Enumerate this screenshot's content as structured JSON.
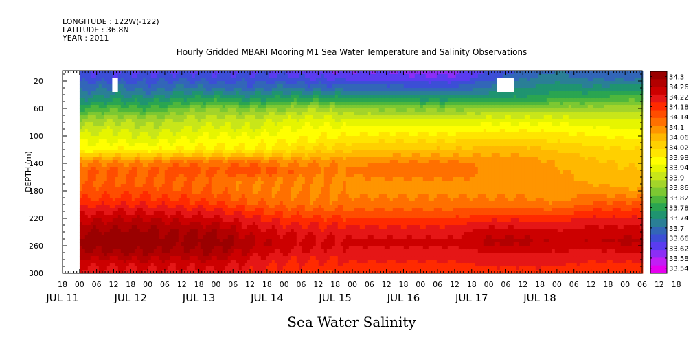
{
  "header": {
    "longitude": "LONGITUDE : 122W(-122)",
    "latitude": "LATITUDE : 36.8N",
    "year": "YEAR : 2011"
  },
  "chart_data": {
    "type": "heatmap",
    "title": "Hourly Gridded MBARI Mooring M1 Sea Water Temperature and Salinity Observations",
    "ylabel": "DEPTH (m)",
    "xlabel": "Sea Water Salinity",
    "y_range": [
      300,
      5
    ],
    "y_reversed": true,
    "y_ticks": [
      "20",
      "60",
      "100",
      "140",
      "180",
      "220",
      "260",
      "300"
    ],
    "x_range_hours": [
      0,
      204
    ],
    "x_hour_ticks": [
      "18",
      "00",
      "06",
      "12",
      "18",
      "00",
      "06",
      "12",
      "18",
      "00",
      "06",
      "12",
      "18",
      "00",
      "06",
      "12",
      "18",
      "00",
      "06",
      "12",
      "18",
      "00",
      "06",
      "12",
      "18",
      "00",
      "06",
      "12",
      "18",
      "00",
      "06",
      "12",
      "18",
      "00",
      "06",
      "12",
      "18"
    ],
    "x_day_labels": [
      "JUL 11",
      "JUL 12",
      "JUL 13",
      "JUL 14",
      "JUL 15",
      "JUL 16",
      "JUL 17",
      "JUL 18"
    ],
    "data_start": "JUL 12 00",
    "no_data_gaps": [
      {
        "from_hour": 0,
        "to_hour": 6,
        "depth_from": 5,
        "depth_to": 300
      },
      {
        "from_hour": 17.5,
        "to_hour": 19.5,
        "depth_from": 15,
        "depth_to": 36
      },
      {
        "from_hour": 153,
        "to_hour": 159,
        "depth_from": 15,
        "depth_to": 36
      }
    ],
    "colorbar": {
      "labels": [
        "34.3",
        "34.26",
        "34.22",
        "34.18",
        "34.14",
        "34.1",
        "34.06",
        "34.02",
        "33.98",
        "33.94",
        "33.9",
        "33.86",
        "33.82",
        "33.78",
        "33.74",
        "33.7",
        "33.66",
        "33.62",
        "33.58",
        "33.54"
      ],
      "colors": [
        "#9a0000",
        "#b20000",
        "#cc0000",
        "#e51616",
        "#ff2a00",
        "#ff4d00",
        "#ff7000",
        "#ff9500",
        "#ffb800",
        "#ffd000",
        "#ffe500",
        "#ffff00",
        "#e6f500",
        "#c8e619",
        "#a3d42a",
        "#7cc832",
        "#4fb73c",
        "#2aa551",
        "#1f9470",
        "#2a7f96",
        "#3266b8",
        "#3c4ed6",
        "#5a3cf0",
        "#8c2ef5",
        "#c21ef5",
        "#e600f0"
      ]
    },
    "depths": [
      10,
      20,
      30,
      45,
      60,
      75,
      90,
      105,
      120,
      135,
      150,
      165,
      180,
      195,
      210,
      225,
      240,
      255,
      270,
      285,
      300
    ],
    "profiles": [
      {
        "hour": 6,
        "values": [
          33.66,
          33.68,
          33.7,
          33.74,
          33.8,
          33.86,
          33.9,
          33.94,
          33.96,
          34.08,
          34.12,
          34.12,
          34.13,
          34.16,
          34.2,
          34.24,
          34.27,
          34.29,
          34.26,
          34.22,
          34.2
        ]
      },
      {
        "hour": 18,
        "values": [
          33.66,
          33.68,
          33.72,
          33.76,
          33.82,
          33.88,
          33.92,
          33.94,
          33.98,
          34.08,
          34.13,
          34.12,
          34.14,
          34.17,
          34.21,
          34.25,
          34.28,
          34.3,
          34.27,
          34.22,
          34.2
        ]
      },
      {
        "hour": 30,
        "values": [
          33.66,
          33.68,
          33.7,
          33.75,
          33.8,
          33.87,
          33.9,
          33.93,
          33.97,
          34.08,
          34.12,
          34.12,
          34.14,
          34.17,
          34.21,
          34.25,
          34.28,
          34.29,
          34.27,
          34.23,
          34.2
        ]
      },
      {
        "hour": 42,
        "values": [
          33.66,
          33.69,
          33.72,
          33.77,
          33.84,
          33.89,
          33.92,
          33.95,
          33.98,
          34.1,
          34.15,
          34.12,
          34.13,
          34.16,
          34.2,
          34.24,
          34.27,
          34.28,
          34.26,
          34.22,
          34.2
        ]
      },
      {
        "hour": 54,
        "values": [
          33.66,
          33.68,
          33.71,
          33.78,
          33.86,
          33.9,
          33.93,
          33.96,
          33.99,
          34.09,
          34.13,
          34.11,
          34.12,
          34.15,
          34.19,
          34.23,
          34.27,
          34.29,
          34.27,
          34.23,
          34.2
        ]
      },
      {
        "hour": 66,
        "values": [
          33.66,
          33.68,
          33.7,
          33.76,
          33.84,
          33.9,
          33.92,
          33.96,
          33.98,
          34.1,
          34.15,
          34.1,
          34.1,
          34.12,
          34.16,
          34.2,
          34.23,
          34.25,
          34.23,
          34.2,
          34.19
        ]
      },
      {
        "hour": 78,
        "values": [
          33.65,
          33.68,
          33.72,
          33.78,
          33.86,
          33.92,
          33.95,
          33.97,
          34.0,
          34.08,
          34.12,
          34.1,
          34.1,
          34.11,
          34.14,
          34.18,
          34.21,
          34.23,
          34.21,
          34.18,
          34.17
        ]
      },
      {
        "hour": 90,
        "values": [
          33.64,
          33.67,
          33.7,
          33.78,
          33.88,
          33.93,
          33.96,
          33.98,
          34.02,
          34.08,
          34.11,
          34.09,
          34.09,
          34.1,
          34.13,
          34.17,
          34.2,
          34.22,
          34.2,
          34.18,
          34.16
        ]
      },
      {
        "hour": 102,
        "values": [
          33.63,
          33.66,
          33.7,
          33.77,
          33.86,
          33.92,
          33.96,
          33.99,
          34.03,
          34.08,
          34.1,
          34.09,
          34.09,
          34.1,
          34.13,
          34.17,
          34.2,
          34.22,
          34.2,
          34.18,
          34.16
        ]
      },
      {
        "hour": 114,
        "values": [
          33.63,
          33.66,
          33.7,
          33.77,
          33.85,
          33.92,
          33.96,
          34.0,
          34.04,
          34.09,
          34.12,
          34.09,
          34.09,
          34.1,
          34.13,
          34.17,
          34.2,
          34.22,
          34.2,
          34.18,
          34.16
        ]
      },
      {
        "hour": 126,
        "values": [
          33.62,
          33.65,
          33.69,
          33.76,
          33.85,
          33.92,
          33.96,
          34.0,
          34.04,
          34.09,
          34.12,
          34.09,
          34.09,
          34.1,
          34.13,
          34.17,
          34.2,
          34.22,
          34.2,
          34.18,
          34.16
        ]
      },
      {
        "hour": 138,
        "values": [
          33.62,
          33.65,
          33.69,
          33.76,
          33.85,
          33.92,
          33.96,
          34.0,
          34.04,
          34.09,
          34.12,
          34.09,
          34.09,
          34.1,
          34.13,
          34.17,
          34.2,
          34.22,
          34.2,
          34.18,
          34.16
        ]
      },
      {
        "hour": 150,
        "values": [
          33.66,
          33.69,
          33.72,
          33.77,
          33.86,
          33.93,
          33.97,
          34.01,
          34.05,
          34.08,
          34.09,
          34.09,
          34.09,
          34.1,
          34.14,
          34.19,
          34.23,
          34.25,
          34.21,
          34.19,
          34.17
        ]
      },
      {
        "hour": 162,
        "values": [
          33.7,
          33.72,
          33.74,
          33.78,
          33.86,
          33.93,
          33.97,
          34.01,
          34.05,
          34.08,
          34.08,
          34.09,
          34.09,
          34.1,
          34.14,
          34.19,
          34.23,
          34.25,
          34.21,
          34.19,
          34.17
        ]
      },
      {
        "hour": 174,
        "values": [
          33.72,
          33.74,
          33.76,
          33.8,
          33.87,
          33.93,
          33.97,
          34.0,
          34.03,
          34.06,
          34.07,
          34.08,
          34.08,
          34.09,
          34.13,
          34.18,
          34.22,
          34.24,
          34.21,
          34.19,
          34.17
        ]
      },
      {
        "hour": 186,
        "values": [
          33.7,
          33.72,
          33.75,
          33.8,
          33.87,
          33.92,
          33.96,
          33.99,
          34.02,
          34.04,
          34.05,
          34.06,
          34.08,
          34.12,
          34.16,
          34.2,
          34.23,
          34.24,
          34.2,
          34.18,
          34.16
        ]
      },
      {
        "hour": 198,
        "values": [
          33.7,
          33.72,
          33.76,
          33.82,
          33.88,
          33.92,
          33.95,
          33.98,
          34.01,
          34.03,
          34.04,
          34.05,
          34.07,
          34.12,
          34.16,
          34.2,
          34.23,
          34.25,
          34.21,
          34.18,
          34.16
        ]
      },
      {
        "hour": 204,
        "values": [
          33.7,
          33.72,
          33.76,
          33.82,
          33.88,
          33.92,
          33.95,
          33.98,
          34.01,
          34.03,
          34.04,
          34.05,
          34.07,
          34.12,
          34.16,
          34.2,
          34.23,
          34.25,
          34.21,
          34.18,
          34.16
        ]
      }
    ]
  }
}
